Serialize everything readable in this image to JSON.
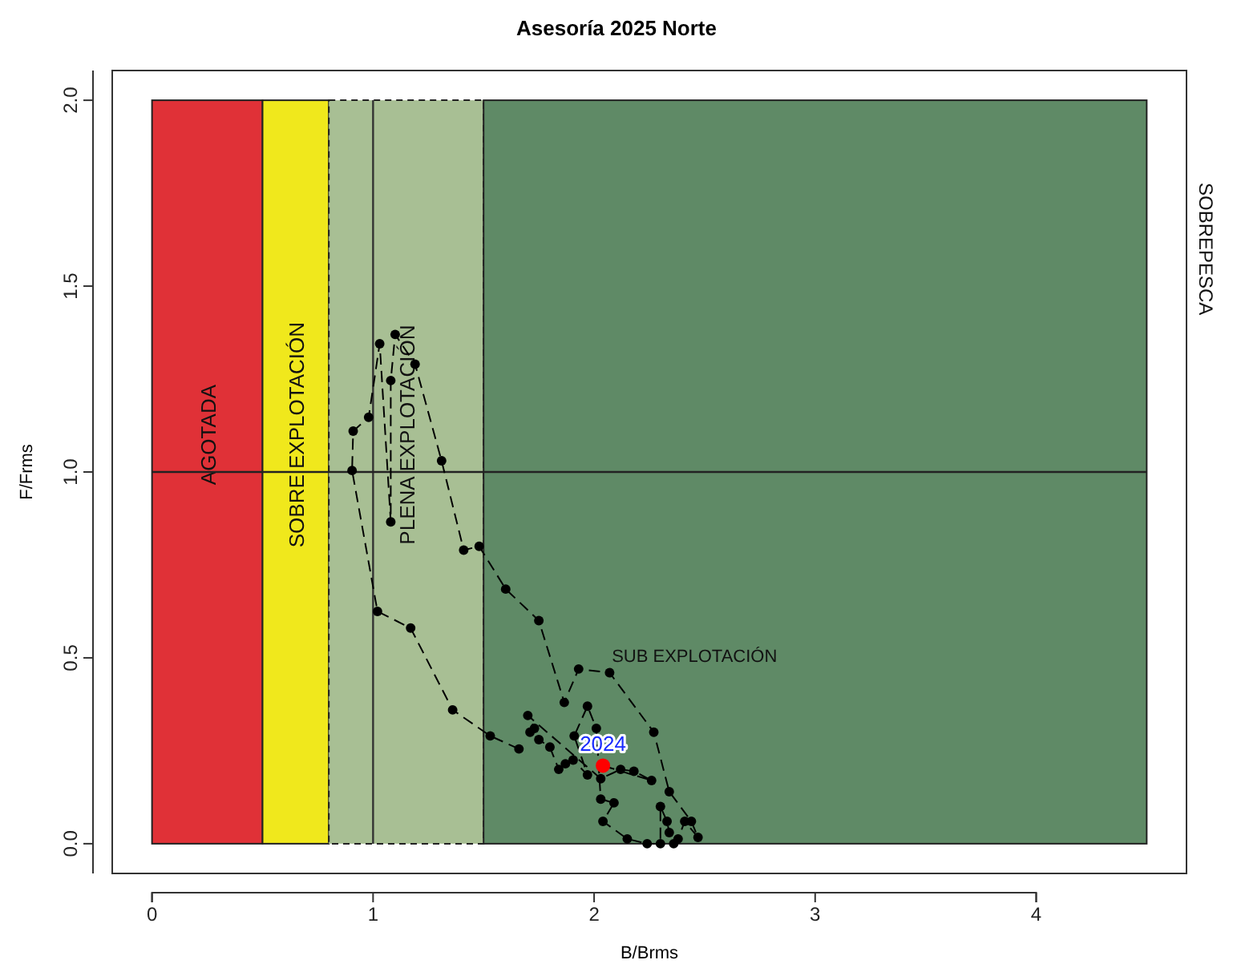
{
  "chart_data": {
    "type": "line",
    "title": "Asesoría 2025 Norte",
    "xlabel": "B/Brms",
    "ylabel": "F/Frms",
    "xlim": [
      -0.18,
      4.68
    ],
    "ylim": [
      -0.08,
      2.08
    ],
    "xticks": [
      0,
      1,
      2,
      3,
      4
    ],
    "yticks": [
      {
        "value": 0,
        "label": "0.0"
      },
      {
        "value": 0.5,
        "label": "0.5"
      },
      {
        "value": 1,
        "label": "1.0"
      },
      {
        "value": 1.5,
        "label": "1.5"
      },
      {
        "value": 2,
        "label": "2.0"
      }
    ],
    "marker": "circle",
    "line_style": "dashed",
    "bands": [
      {
        "axis": "x",
        "from": 0,
        "to": 0.5,
        "label": "AGOTADA",
        "color": "#e03137"
      },
      {
        "axis": "x",
        "from": 0.5,
        "to": 0.8,
        "label": "SOBRE EXPLOTACIÓN",
        "color": "#f0e81c"
      },
      {
        "axis": "x",
        "from": 0.8,
        "to": 1.5,
        "label": "PLENA EXPLOTACIÓN",
        "color": "#a8bf94"
      },
      {
        "axis": "x",
        "from": 1.5,
        "to": 4.5,
        "label": null,
        "color": "#5f8a66"
      }
    ],
    "ref_lines": [
      {
        "axis": "x",
        "value": 1,
        "label": null,
        "color": "#333333"
      },
      {
        "axis": "y",
        "value": 1,
        "label": null,
        "color": "#222222"
      }
    ],
    "annotations": [
      {
        "text": "SUB EXPLOTACIÓN",
        "x": 2.08,
        "y": 0.49
      },
      {
        "text": "2024",
        "x": 2.04,
        "y": 0.21
      },
      "SOBREPESCA"
    ],
    "series": [
      {
        "color": "#000000",
        "x": [
          1.66,
          1.53,
          1.36,
          1.17,
          1.02,
          0.905,
          0.91,
          0.98,
          1.03,
          1.08,
          1.08,
          1.1,
          1.19,
          1.31,
          1.41,
          1.48,
          1.6,
          1.75,
          1.865,
          1.93,
          2.07,
          2.27,
          2.34,
          2.44,
          2.47,
          2.41,
          2.38,
          2.36,
          2.34,
          2.33,
          2.3,
          2.3,
          2.24,
          2.15,
          2.04,
          2.09,
          2.03,
          2.01,
          1.97,
          1.91,
          1.97,
          1.905,
          1.87,
          1.84,
          1.8,
          1.75,
          1.71,
          1.73,
          1.7,
          2.03,
          2.12,
          2.18,
          2.26,
          2.04
        ],
        "values": [
          0.255,
          0.29,
          0.36,
          0.58,
          0.625,
          1.004,
          1.11,
          1.147,
          1.345,
          0.866,
          1.246,
          1.37,
          1.29,
          1.03,
          0.79,
          0.8,
          0.685,
          0.6,
          0.38,
          0.47,
          0.46,
          0.3,
          0.14,
          0.06,
          0.017,
          0.06,
          0.013,
          0.0,
          0.03,
          0.06,
          0.1,
          0.0,
          0.0,
          0.013,
          0.06,
          0.11,
          0.12,
          0.31,
          0.37,
          0.29,
          0.185,
          0.225,
          0.215,
          0.2,
          0.26,
          0.28,
          0.3,
          0.31,
          0.345,
          0.175,
          0.2,
          0.195,
          0.17,
          0.21
        ]
      },
      {
        "type": "scatter",
        "color": "#ff0000",
        "x": [
          2.04
        ],
        "values": [
          0.21
        ]
      }
    ]
  }
}
